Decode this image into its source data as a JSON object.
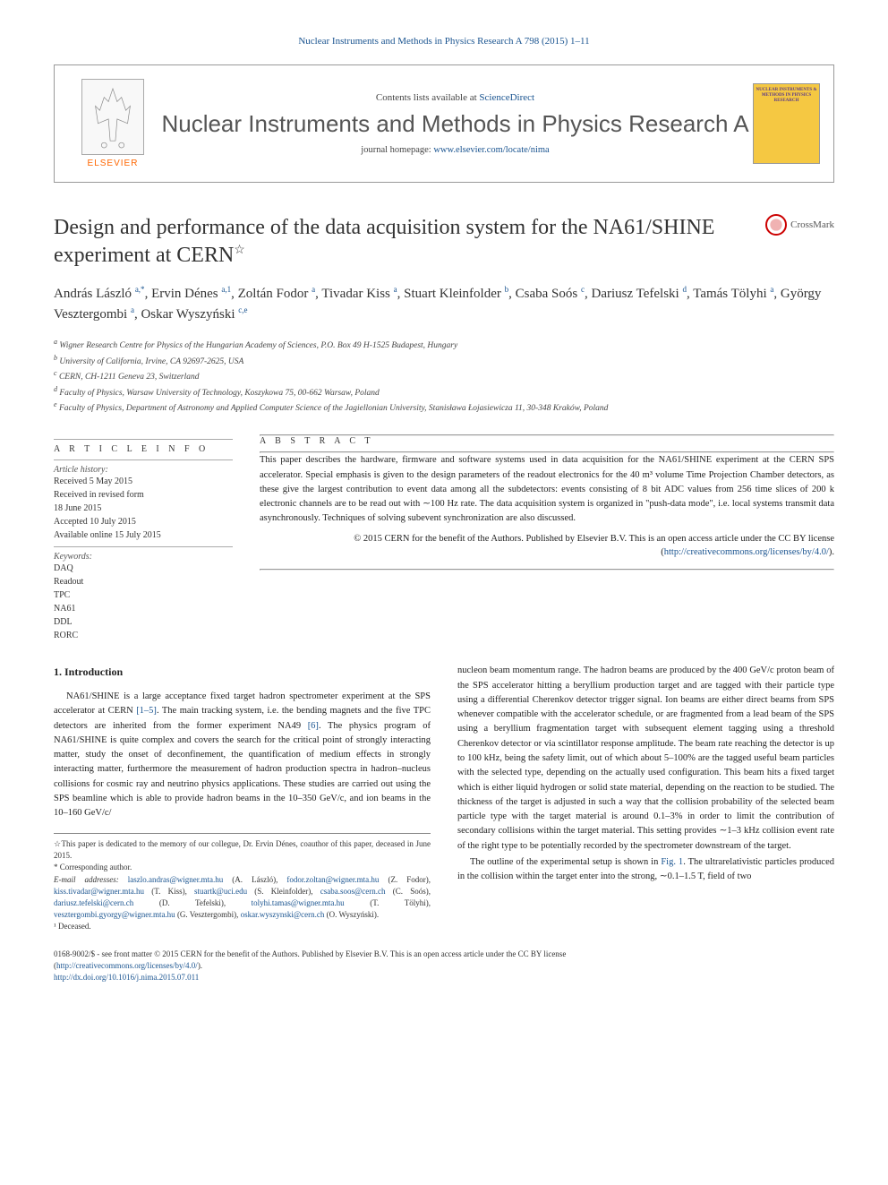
{
  "top_citation": "Nuclear Instruments and Methods in Physics Research A 798 (2015) 1–11",
  "header": {
    "contents_line_pre": "Contents lists available at ",
    "contents_line_link": "ScienceDirect",
    "journal_name": "Nuclear Instruments and Methods in Physics Research A",
    "homepage_pre": "journal homepage: ",
    "homepage_link": "www.elsevier.com/locate/nima",
    "elsevier_label": "ELSEVIER",
    "cover_text": "NUCLEAR INSTRUMENTS & METHODS IN PHYSICS RESEARCH"
  },
  "title": "Design and performance of the data acquisition system for the NA61/SHINE experiment at CERN",
  "title_star": "☆",
  "crossmark_label": "CrossMark",
  "authors_html": "András László <sup>a,*</sup>, Ervin Dénes <sup>a,1</sup>, Zoltán Fodor <sup>a</sup>, Tivadar Kiss <sup>a</sup>, Stuart Kleinfolder <sup>b</sup>, Csaba Soós <sup>c</sup>, Dariusz Tefelski <sup>d</sup>, Tamás Tölyhi <sup>a</sup>, György Vesztergombi <sup>a</sup>, Oskar Wyszyński <sup>c,e</sup>",
  "affiliations": [
    {
      "sup": "a",
      "text": "Wigner Research Centre for Physics of the Hungarian Academy of Sciences, P.O. Box 49 H-1525 Budapest, Hungary"
    },
    {
      "sup": "b",
      "text": "University of California, Irvine, CA 92697-2625, USA"
    },
    {
      "sup": "c",
      "text": "CERN, CH-1211 Geneva 23, Switzerland"
    },
    {
      "sup": "d",
      "text": "Faculty of Physics, Warsaw University of Technology, Koszykowa 75, 00-662 Warsaw, Poland"
    },
    {
      "sup": "e",
      "text": "Faculty of Physics, Department of Astronomy and Applied Computer Science of the Jagiellonian University, Stanisława Łojasiewicza 11, 30-348 Kraków, Poland"
    }
  ],
  "article_info": {
    "heading": "A R T I C L E   I N F O",
    "history_label": "Article history:",
    "history": [
      "Received 5 May 2015",
      "Received in revised form",
      "18 June 2015",
      "Accepted 10 July 2015",
      "Available online 15 July 2015"
    ],
    "keywords_label": "Keywords:",
    "keywords": [
      "DAQ",
      "Readout",
      "TPC",
      "NA61",
      "DDL",
      "RORC"
    ]
  },
  "abstract": {
    "heading": "A B S T R A C T",
    "text": "This paper describes the hardware, firmware and software systems used in data acquisition for the NA61/SHINE experiment at the CERN SPS accelerator. Special emphasis is given to the design parameters of the readout electronics for the 40 m³ volume Time Projection Chamber detectors, as these give the largest contribution to event data among all the subdetectors: events consisting of 8 bit ADC values from 256 time slices of 200 k electronic channels are to be read out with ∼100 Hz rate. The data acquisition system is organized in \"push-data mode\", i.e. local systems transmit data asynchronously. Techniques of solving subevent synchronization are also discussed.",
    "copyright_pre": "© 2015 CERN for the benefit of the Authors. Published by Elsevier B.V. This is an open access article under the CC BY license (",
    "copyright_link": "http://creativecommons.org/licenses/by/4.0/",
    "copyright_post": ")."
  },
  "body": {
    "section1_heading": "1.  Introduction",
    "left_para1": "NA61/SHINE is a large acceptance fixed target hadron spectrometer experiment at the SPS accelerator at CERN [1–5]. The main tracking system, i.e. the bending magnets and the five TPC detectors are inherited from the former experiment NA49 [6]. The physics program of NA61/SHINE is quite complex and covers the search for the critical point of strongly interacting matter, study the onset of deconfinement, the quantification of medium effects in strongly interacting matter, furthermore the measurement of hadron production spectra in hadron–nucleus collisions for cosmic ray and neutrino physics applications. These studies are carried out using the SPS beamline which is able to provide hadron beams in the 10–350 GeV/c, and ion beams in the 10–160 GeV/c/",
    "right_para1": "nucleon beam momentum range. The hadron beams are produced by the 400 GeV/c proton beam of the SPS accelerator hitting a beryllium production target and are tagged with their particle type using a differential Cherenkov detector trigger signal. Ion beams are either direct beams from SPS whenever compatible with the accelerator schedule, or are fragmented from a lead beam of the SPS using a beryllium fragmentation target with subsequent element tagging using a threshold Cherenkov detector or via scintillator response amplitude. The beam rate reaching the detector is up to 100 kHz, being the safety limit, out of which about 5–100% are the tagged useful beam particles with the selected type, depending on the actually used configuration. This beam hits a fixed target which is either liquid hydrogen or solid state material, depending on the reaction to be studied. The thickness of the target is adjusted in such a way that the collision probability of the selected beam particle type with the target material is around 0.1–3% in order to limit the contribution of secondary collisions within the target material. This setting provides ∼1–3 kHz collision event rate of the right type to be potentially recorded by the spectrometer downstream of the target.",
    "right_para2": "The outline of the experimental setup is shown in Fig. 1. The ultrarelativistic particles produced in the collision within the target enter into the strong, ∼0.1–1.5 T, field of two"
  },
  "footnotes": {
    "dedication": "☆This paper is dedicated to the memory of our collegue, Dr. Ervin Dénes, coauthor of this paper, deceased in June 2015.",
    "corresponding": "* Corresponding author.",
    "email_label": "E-mail addresses:",
    "emails": [
      {
        "addr": "laszlo.andras@wigner.mta.hu",
        "name": "(A. László),"
      },
      {
        "addr": "fodor.zoltan@wigner.mta.hu",
        "name": "(Z. Fodor),"
      },
      {
        "addr": "kiss.tivadar@wigner.mta.hu",
        "name": "(T. Kiss),"
      },
      {
        "addr": "stuartk@uci.edu",
        "name": "(S. Kleinfolder),"
      },
      {
        "addr": "csaba.soos@cern.ch",
        "name": "(C. Soós),"
      },
      {
        "addr": "dariusz.tefelski@cern.ch",
        "name": "(D. Tefelski),"
      },
      {
        "addr": "tolyhi.tamas@wigner.mta.hu",
        "name": "(T. Tölyhi),"
      },
      {
        "addr": "vesztergombi.gyorgy@wigner.mta.hu",
        "name": "(G. Vesztergombi),"
      },
      {
        "addr": "oskar.wyszynski@cern.ch",
        "name": "(O. Wyszyński)."
      }
    ],
    "deceased": "¹ Deceased."
  },
  "bottom": {
    "issn_line": "0168-9002/$ - see front matter © 2015 CERN for the benefit of the Authors. Published by Elsevier B.V. This is an open access article under the CC BY license",
    "cc_link": "http://creativecommons.org/licenses/by/4.0/",
    "doi": "http://dx.doi.org/10.1016/j.nima.2015.07.011"
  },
  "colors": {
    "link": "#1a5490",
    "elsevier_orange": "#ff6600",
    "cover_bg": "#f5c842",
    "cover_text": "#5b3a8a"
  }
}
